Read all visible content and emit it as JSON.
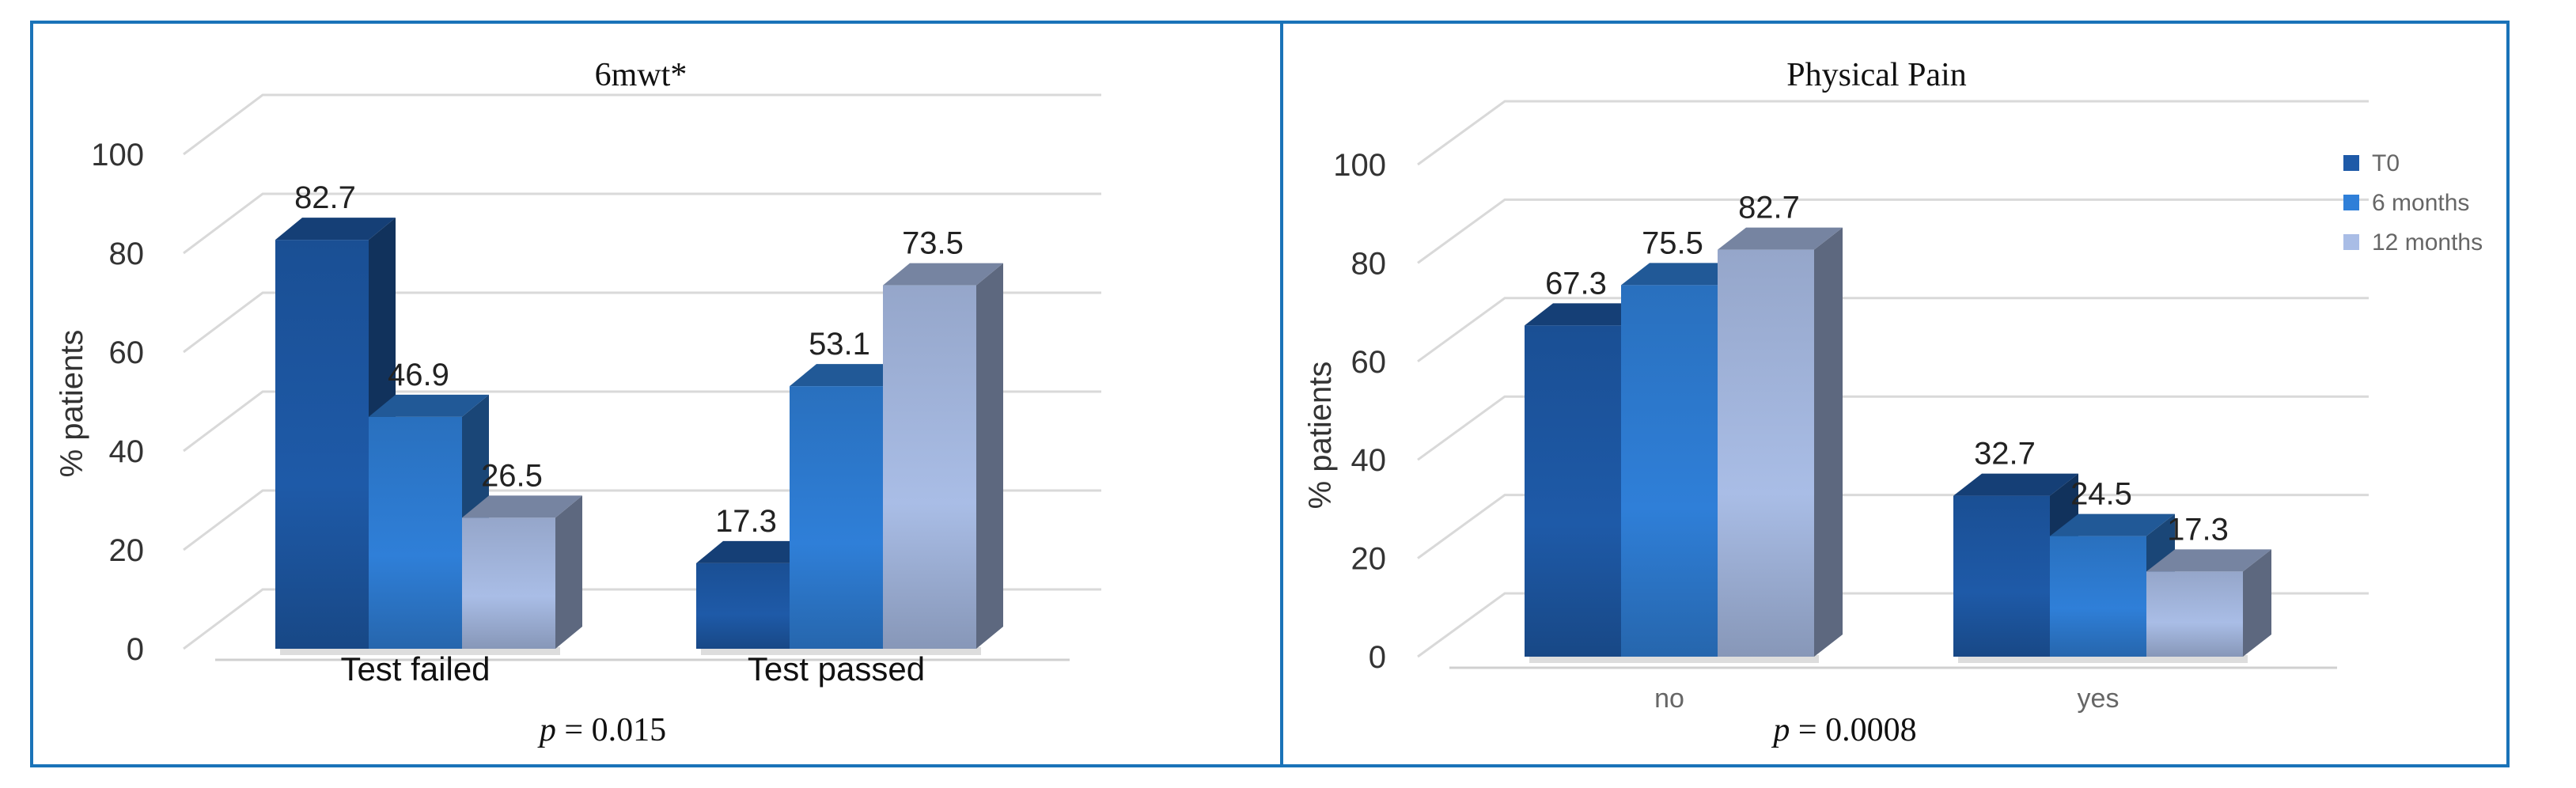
{
  "colors": {
    "border": "#1a73b8",
    "series": [
      "#1e5aa8",
      "#2f7fd8",
      "#a9bde6"
    ]
  },
  "chart_data": [
    {
      "type": "bar",
      "title": "6mwt*",
      "ylabel": "% patients",
      "xlabel": "",
      "ylim": [
        0,
        100
      ],
      "yticks": [
        "0",
        "20",
        "40",
        "60",
        "80",
        "100"
      ],
      "categories": [
        "Test failed",
        "Test passed"
      ],
      "series": [
        {
          "values": [
            82.7,
            17.3
          ]
        },
        {
          "values": [
            46.9,
            53.1
          ]
        },
        {
          "values": [
            26.5,
            73.5
          ]
        }
      ],
      "data_labels": [
        [
          "82.7",
          "46.9",
          "26.5"
        ],
        [
          "17.3",
          "53.1",
          "73.5"
        ]
      ],
      "pvalue_label": "p",
      "pvalue_text": " = 0.015",
      "grid": true,
      "legend": "none"
    },
    {
      "type": "bar",
      "title": "Physical Pain",
      "ylabel": "% patients",
      "xlabel": "",
      "ylim": [
        0,
        100
      ],
      "yticks": [
        "0",
        "20",
        "40",
        "60",
        "80",
        "100"
      ],
      "categories": [
        "no",
        "yes"
      ],
      "series": [
        {
          "name": "T0",
          "values": [
            67.3,
            32.7
          ]
        },
        {
          "name": "6   months",
          "values": [
            75.5,
            24.5
          ]
        },
        {
          "name": "12  months",
          "values": [
            82.7,
            17.3
          ]
        }
      ],
      "data_labels": [
        [
          "67.3",
          "75.5",
          "82.7"
        ],
        [
          "32.7",
          "24.5",
          "17.3"
        ]
      ],
      "pvalue_label": "p",
      "pvalue_text": " = 0.0008",
      "grid": true,
      "legend": "top-right"
    }
  ]
}
